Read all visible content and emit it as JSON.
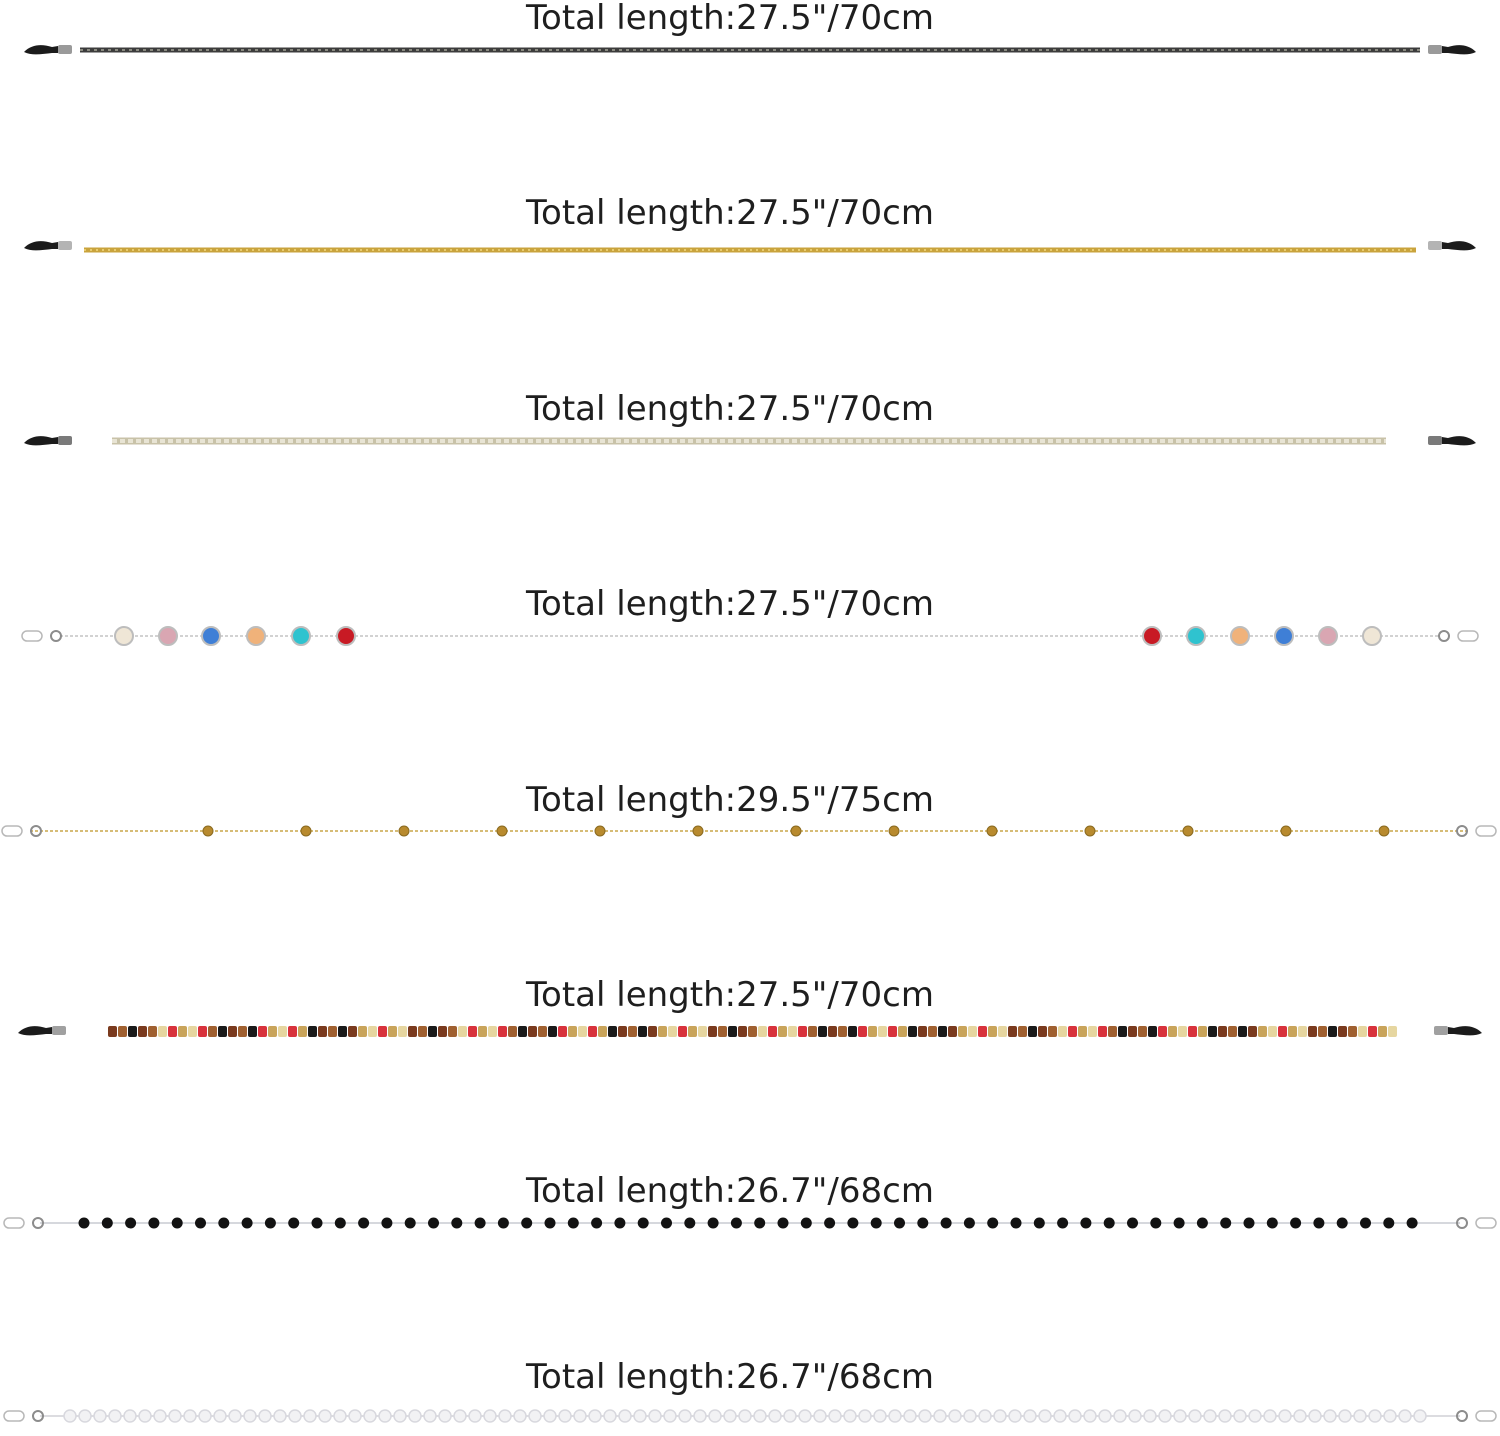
{
  "chains": [
    {
      "label": "Total length:27.5\"/70cm",
      "style": "dark-cord",
      "colors": [
        "#3c3c3c",
        "#8a8a80"
      ]
    },
    {
      "label": "Total length:27.5\"/70cm",
      "style": "gold-cord",
      "colors": [
        "#c9a33c",
        "#e8cc70"
      ]
    },
    {
      "label": "Total length:27.5\"/70cm",
      "style": "silver-rhinestone",
      "colors": [
        "#c8c2a8",
        "#e8e4d4"
      ]
    },
    {
      "label": "Total length:27.5\"/70cm",
      "style": "crystal-station",
      "colors": [
        "#efe6d6",
        "#d9a6b2",
        "#3f7fd6",
        "#f0b27a",
        "#2fc3cf",
        "#c81a24"
      ]
    },
    {
      "label": "Total length:29.5\"/75cm",
      "style": "gold-satellite",
      "colors": [
        "#c9a54a",
        "#b88a2e"
      ]
    },
    {
      "label": "Total length:27.5\"/70cm",
      "style": "seed-bead",
      "colors": [
        "#7a3a1e",
        "#c9a45a",
        "#1a1a1a",
        "#d8323c",
        "#a06030",
        "#e6d6a0"
      ]
    },
    {
      "label": "Total length:26.7\"/68cm",
      "style": "black-bead",
      "colors": [
        "#121212",
        "#d8e0e8"
      ]
    },
    {
      "label": "Total length:26.7\"/68cm",
      "style": "pearl",
      "colors": [
        "#f2f2f4",
        "#d8d8de"
      ]
    }
  ]
}
